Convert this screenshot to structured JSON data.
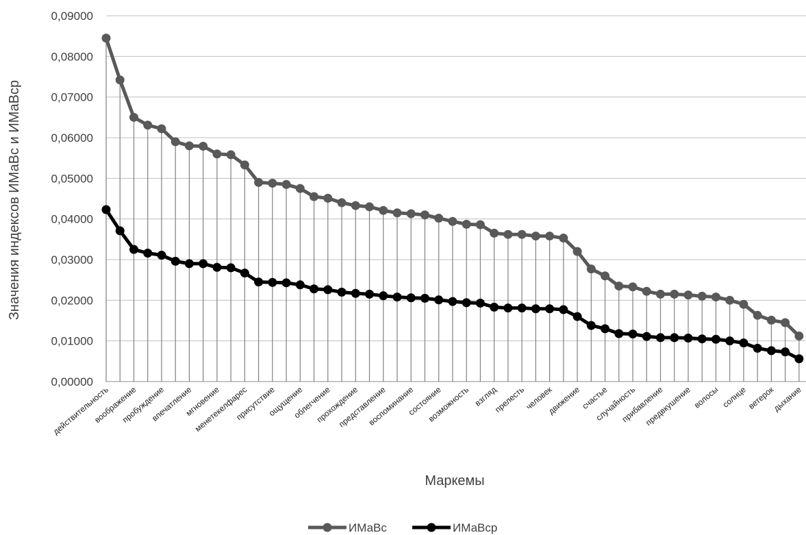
{
  "chart_data": {
    "type": "line",
    "title": "",
    "xlabel": "Маркемы",
    "ylabel": "Значения индексов ИМаВс и ИМаВср",
    "ylim": [
      0,
      0.09
    ],
    "y_ticks": [
      "0,00000",
      "0,01000",
      "0,02000",
      "0,03000",
      "0,04000",
      "0,05000",
      "0,06000",
      "0,07000",
      "0,08000",
      "0,09000"
    ],
    "grid": true,
    "legend_position": "bottom",
    "x_tick_labels": [
      "действительность",
      "воображение",
      "пробуждение",
      "впечатление",
      "мгновение",
      "менетекелфарес",
      "присутствие",
      "ощущение",
      "облегчение",
      "прохождение",
      "представление",
      "воспоминание",
      "состояние",
      "возможность",
      "взгляд",
      "прелесть",
      "человек",
      "движение",
      "счастье",
      "случайность",
      "прибавление",
      "предвкушение",
      "волосы",
      "солнце",
      "ветерок",
      "дыхание"
    ],
    "x_tick_every": 2,
    "colors": {
      "ИМаВс": "#595959",
      "ИМаВср": "#000000",
      "drop_lines": "#808080",
      "grid": "#bfbfbf"
    },
    "series": [
      {
        "name": "ИМаВс",
        "values": [
          0.0845,
          0.0742,
          0.065,
          0.0631,
          0.0622,
          0.059,
          0.058,
          0.0579,
          0.056,
          0.0558,
          0.0533,
          0.049,
          0.0488,
          0.0485,
          0.0475,
          0.0455,
          0.0451,
          0.044,
          0.0433,
          0.043,
          0.0421,
          0.0415,
          0.0413,
          0.041,
          0.0402,
          0.0394,
          0.0387,
          0.0386,
          0.0365,
          0.0362,
          0.0362,
          0.0358,
          0.0358,
          0.0353,
          0.032,
          0.0277,
          0.026,
          0.0235,
          0.0233,
          0.0222,
          0.0215,
          0.0215,
          0.0213,
          0.021,
          0.0208,
          0.02,
          0.019,
          0.0163,
          0.0151,
          0.0145,
          0.0112
        ]
      },
      {
        "name": "ИМаВср",
        "values": [
          0.0423,
          0.0371,
          0.0325,
          0.0316,
          0.0311,
          0.0296,
          0.029,
          0.029,
          0.0281,
          0.028,
          0.0267,
          0.0245,
          0.0244,
          0.0243,
          0.0238,
          0.0228,
          0.0226,
          0.022,
          0.0217,
          0.0215,
          0.0211,
          0.0208,
          0.0206,
          0.0205,
          0.0201,
          0.0197,
          0.0194,
          0.0193,
          0.0183,
          0.0181,
          0.0181,
          0.0179,
          0.0179,
          0.0177,
          0.016,
          0.0138,
          0.013,
          0.0118,
          0.0117,
          0.0111,
          0.0108,
          0.0108,
          0.0107,
          0.0105,
          0.0104,
          0.01,
          0.0095,
          0.0082,
          0.0076,
          0.0073,
          0.0056
        ]
      }
    ]
  },
  "legend": {
    "items": [
      {
        "label": "ИМаВс",
        "color": "#595959"
      },
      {
        "label": "ИМаВср",
        "color": "#000000"
      }
    ]
  }
}
